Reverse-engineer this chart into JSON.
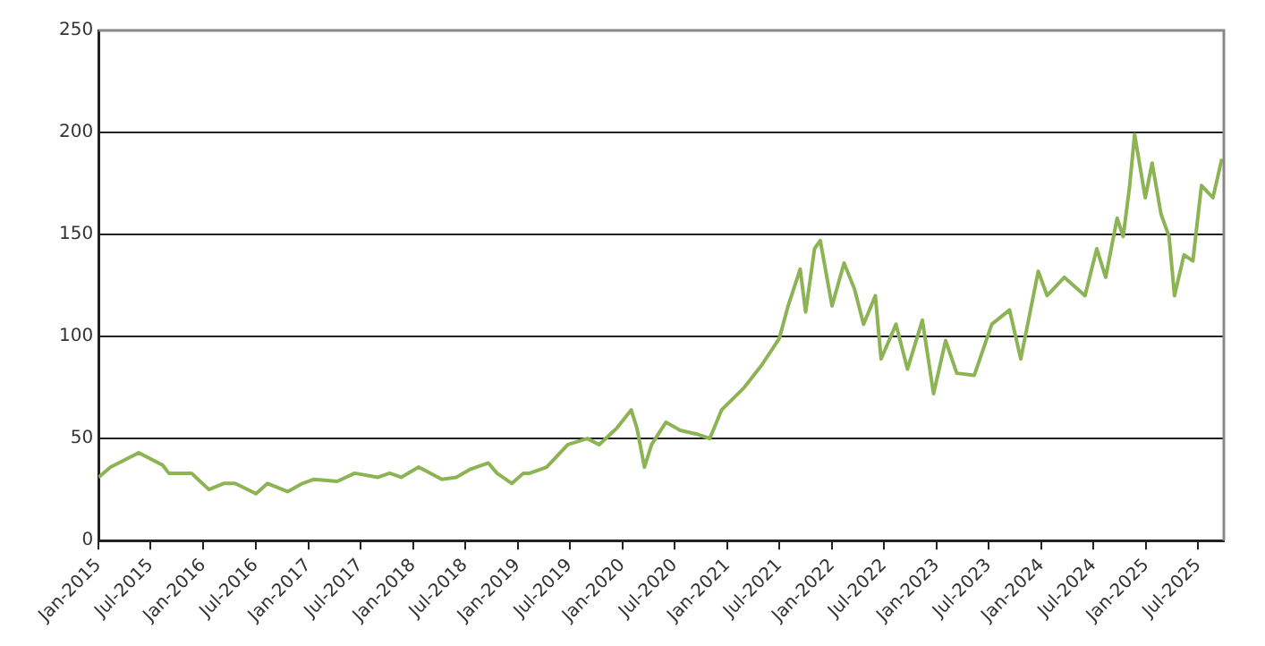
{
  "chart_data": {
    "type": "line",
    "x": [
      "2015-01-01",
      "2015-02-12",
      "2015-05-21",
      "2015-08-12",
      "2015-09-03",
      "2015-11-21",
      "2015-12-21",
      "2016-01-21",
      "2016-03-12",
      "2016-04-21",
      "2016-07-03",
      "2016-08-12",
      "2016-10-21",
      "2016-12-12",
      "2017-01-21",
      "2017-04-12",
      "2017-06-12",
      "2017-09-01",
      "2017-10-12",
      "2017-11-21",
      "2018-01-21",
      "2018-04-12",
      "2018-06-01",
      "2018-07-21",
      "2018-09-21",
      "2018-10-21",
      "2018-12-12",
      "2019-01-21",
      "2019-02-12",
      "2019-04-12",
      "2019-06-25",
      "2019-09-01",
      "2019-10-12",
      "2019-12-12",
      "2020-02-01",
      "2020-02-21",
      "2020-03-18",
      "2020-04-12",
      "2020-06-01",
      "2020-07-21",
      "2020-09-21",
      "2020-11-01",
      "2020-12-12",
      "2021-03-01",
      "2021-05-01",
      "2021-07-01",
      "2021-08-01",
      "2021-09-12",
      "2021-10-01",
      "2021-11-01",
      "2021-11-21",
      "2022-01-01",
      "2022-02-12",
      "2022-03-21",
      "2022-04-21",
      "2022-06-01",
      "2022-06-21",
      "2022-08-12",
      "2022-09-21",
      "2022-11-12",
      "2022-12-21",
      "2023-02-01",
      "2023-03-12",
      "2023-05-12",
      "2023-07-12",
      "2023-09-12",
      "2023-10-21",
      "2023-12-21",
      "2024-01-21",
      "2024-03-21",
      "2024-06-01",
      "2024-07-12",
      "2024-08-12",
      "2024-09-21",
      "2024-10-12",
      "2024-11-03",
      "2024-11-21",
      "2024-12-28",
      "2025-01-21",
      "2025-02-21",
      "2025-03-21",
      "2025-04-09",
      "2025-05-12",
      "2025-06-12",
      "2025-07-12",
      "2025-08-21",
      "2025-09-21"
    ],
    "series": [
      {
        "color": "#8db454",
        "values": [
          31,
          36,
          43,
          37,
          33,
          33,
          29,
          25,
          28,
          28,
          23,
          28,
          24,
          28,
          30,
          29,
          33,
          31,
          33,
          31,
          36,
          30,
          31,
          35,
          38,
          33,
          28,
          33,
          33,
          36,
          47,
          50,
          47,
          55,
          64,
          55,
          36,
          47,
          58,
          54,
          52,
          50,
          64,
          75,
          86,
          99,
          115,
          133,
          112,
          143,
          147,
          115,
          136,
          123,
          106,
          120,
          89,
          106,
          84,
          108,
          72,
          98,
          82,
          81,
          106,
          113,
          89,
          132,
          120,
          129,
          120,
          143,
          129,
          158,
          149,
          173,
          199,
          168,
          185,
          160,
          149,
          120,
          140,
          137,
          174,
          168,
          187
        ]
      }
    ],
    "xlim": [
      "2015-01-01",
      "2025-09-28"
    ],
    "xticks": [
      {
        "value": "2015-01",
        "label": "Jan-2015"
      },
      {
        "value": "2015-07",
        "label": "Jul-2015"
      },
      {
        "value": "2016-01",
        "label": "Jan-2016"
      },
      {
        "value": "2016-07",
        "label": "Jul-2016"
      },
      {
        "value": "2017-01",
        "label": "Jan-2017"
      },
      {
        "value": "2017-07",
        "label": "Jul-2017"
      },
      {
        "value": "2018-01",
        "label": "Jan-2018"
      },
      {
        "value": "2018-07",
        "label": "Jul-2018"
      },
      {
        "value": "2019-01",
        "label": "Jan-2019"
      },
      {
        "value": "2019-07",
        "label": "Jul-2019"
      },
      {
        "value": "2020-01",
        "label": "Jan-2020"
      },
      {
        "value": "2020-07",
        "label": "Jul-2020"
      },
      {
        "value": "2021-01",
        "label": "Jan-2021"
      },
      {
        "value": "2021-07",
        "label": "Jul-2021"
      },
      {
        "value": "2022-01",
        "label": "Jan-2022"
      },
      {
        "value": "2022-07",
        "label": "Jul-2022"
      },
      {
        "value": "2023-01",
        "label": "Jan-2023"
      },
      {
        "value": "2023-07",
        "label": "Jul-2023"
      },
      {
        "value": "2024-01",
        "label": "Jan-2024"
      },
      {
        "value": "2024-07",
        "label": "Jul-2024"
      },
      {
        "value": "2025-01",
        "label": "Jan-2025"
      },
      {
        "value": "2025-07",
        "label": "Jul-2025"
      }
    ],
    "ylim": [
      0,
      250
    ],
    "yticks": [
      0,
      50,
      100,
      150,
      200,
      250
    ],
    "grid": "y",
    "legend": false,
    "marker": "none",
    "line_style": "solid"
  }
}
